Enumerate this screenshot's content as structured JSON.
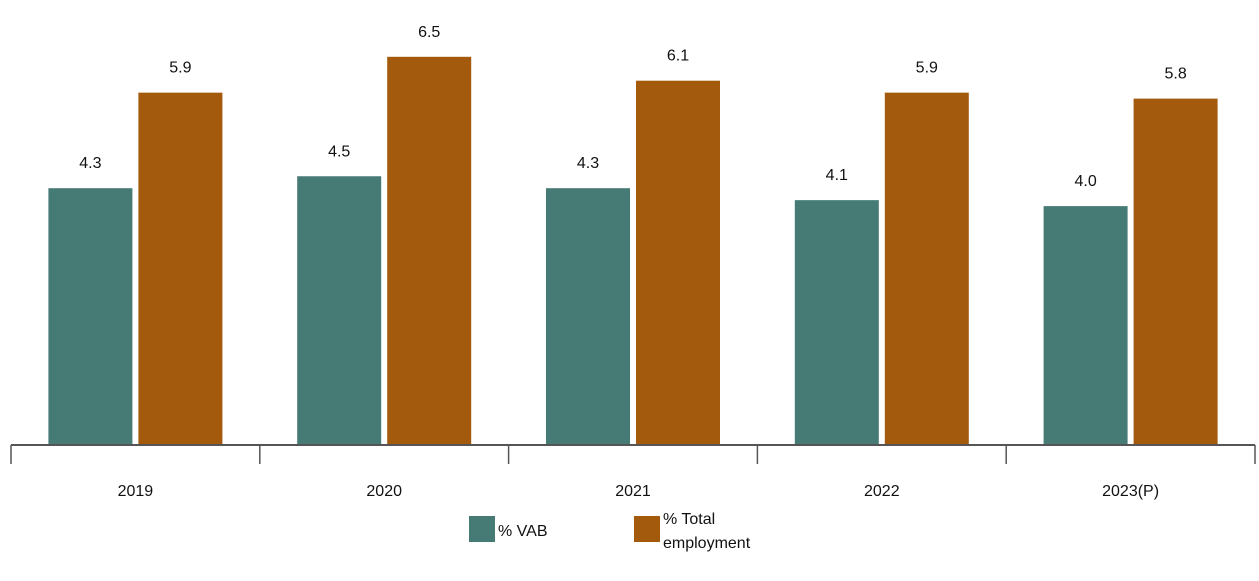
{
  "chart_data": {
    "type": "bar",
    "title": "",
    "xlabel": "",
    "ylabel": "",
    "categories": [
      "2019",
      "2020",
      "2021",
      "2022",
      "2023(P)"
    ],
    "series": [
      {
        "name": "% VAB",
        "values": [
          4.3,
          4.5,
          4.3,
          4.1,
          4.0
        ],
        "color": "#467B75"
      },
      {
        "name": "% Total employment",
        "values": [
          5.9,
          6.5,
          6.1,
          5.9,
          5.8
        ],
        "color": "#A35A0C"
      }
    ],
    "value_labels": [
      [
        "4.3",
        "4.5",
        "4.3",
        "4.1",
        "4.0"
      ],
      [
        "5.9",
        "6.5",
        "6.1",
        "5.9",
        "5.8"
      ]
    ],
    "legend_lines": [
      [
        "% VAB"
      ],
      [
        "% Total",
        "employment"
      ]
    ],
    "ylim": [
      0,
      7.2
    ],
    "grid": false,
    "legend_position": "bottom-center",
    "axis_color": "#555555"
  }
}
